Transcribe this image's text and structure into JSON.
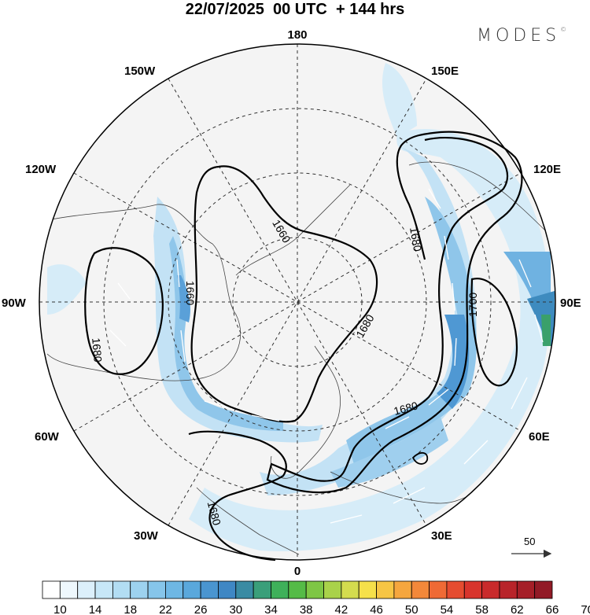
{
  "title": "22/07/2025  00 UTC  + 144 hrs",
  "brand": "MODES",
  "brand_mark": "©",
  "longitude_labels": {
    "lon_180": "180",
    "lon_150e": "150E",
    "lon_120e": "120E",
    "lon_90e": "90E",
    "lon_60e": "60E",
    "lon_30e": "30E",
    "lon_0": "0",
    "lon_30w": "30W",
    "lon_60w": "60W",
    "lon_90w": "90W",
    "lon_120w": "120W",
    "lon_150w": "150W"
  },
  "contour_labels": {
    "c1": "1660",
    "c2": "1660",
    "c3": "1680",
    "c4": "1680",
    "c5": "1680",
    "c6": "1700",
    "c7": "1680",
    "c8": "1680"
  },
  "vector_reference": {
    "value": "50"
  },
  "colorbar": {
    "labels": [
      "10",
      "14",
      "18",
      "22",
      "26",
      "30",
      "34",
      "38",
      "42",
      "46",
      "50",
      "54",
      "58",
      "62",
      "66",
      "70"
    ],
    "colors": [
      "#ffffff",
      "#eef8fd",
      "#dcf0fb",
      "#c7e7f7",
      "#b2ddf3",
      "#9dd2ef",
      "#86c5ea",
      "#6eb7e4",
      "#5aa8dc",
      "#4a95d0",
      "#3f87c4",
      "#3a8ba3",
      "#3a9f7a",
      "#3fb05a",
      "#55bb47",
      "#7ec645",
      "#a9d24a",
      "#d4dc4e",
      "#f5e04a",
      "#f6c544",
      "#f5a63e",
      "#f3883a",
      "#ef6a35",
      "#e54c30",
      "#d8342c",
      "#c92a2b",
      "#b8242a",
      "#a51f28",
      "#921a26"
    ]
  },
  "colors": {
    "jet_light": "#d6ecf8",
    "jet_mid": "#9fcfee",
    "jet_strong": "#4f98d3",
    "land": "#f2f2f2"
  }
}
